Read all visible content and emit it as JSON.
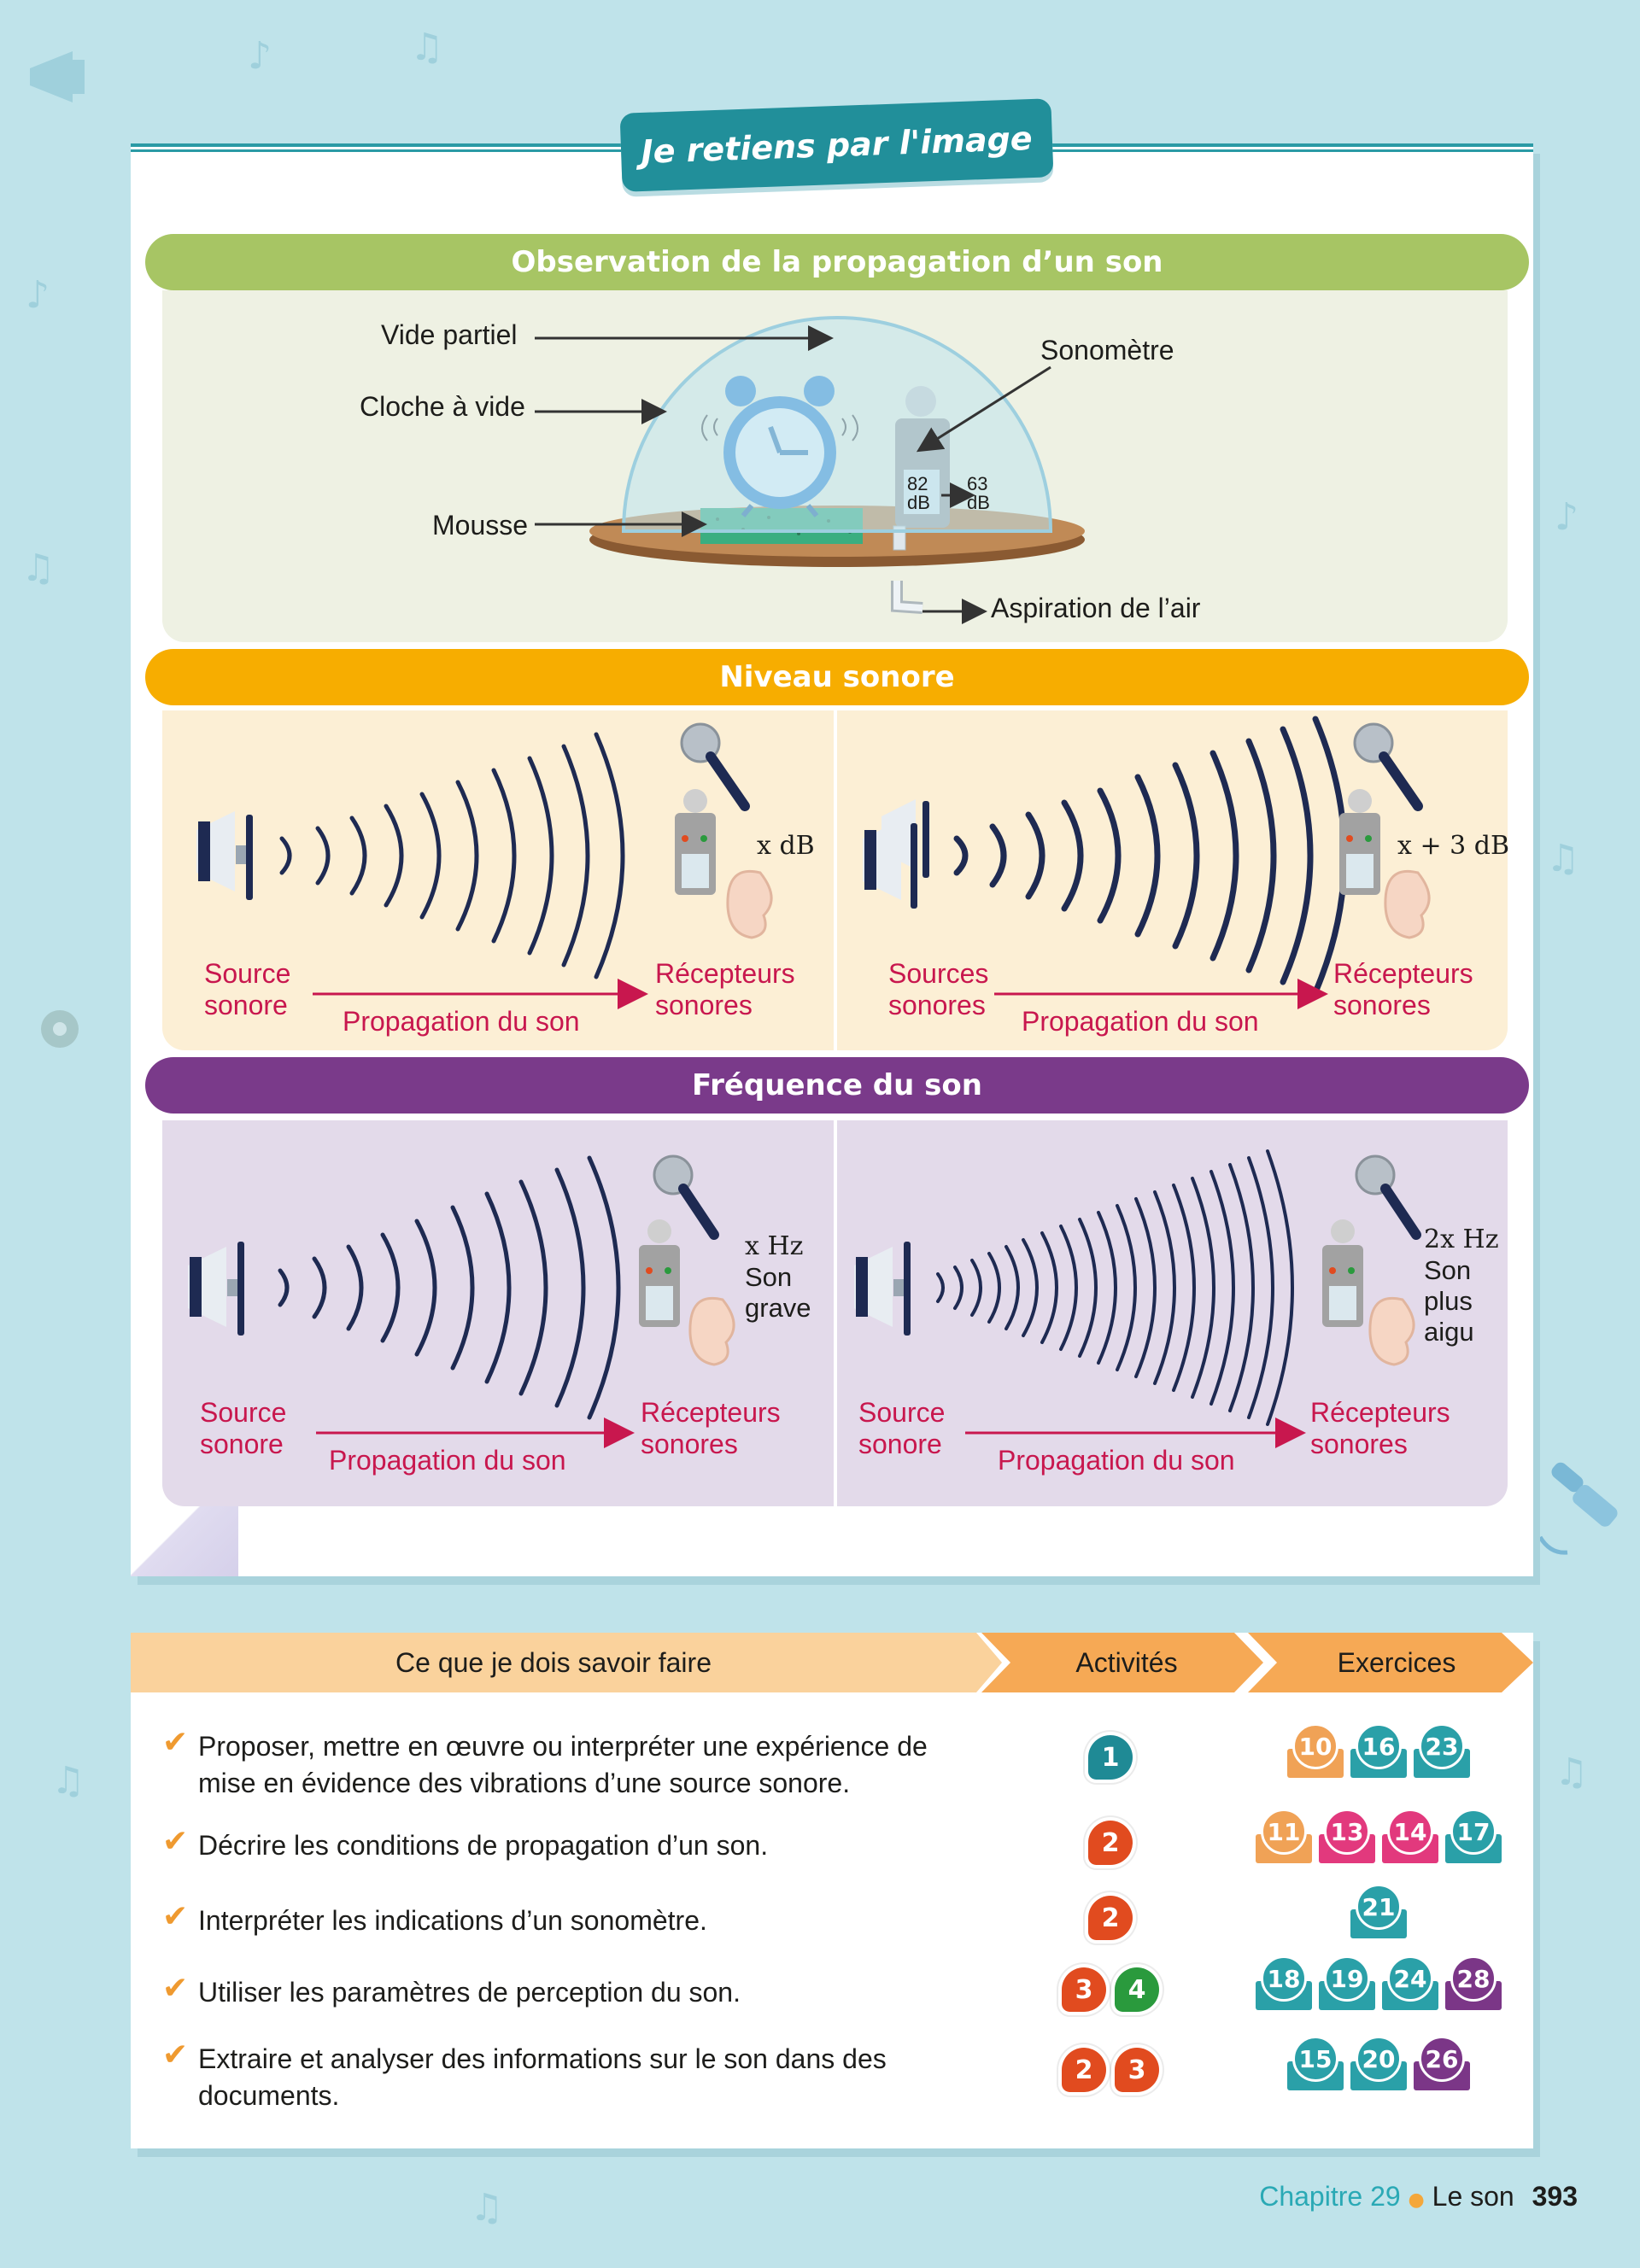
{
  "page": {
    "title_tab": "Je retiens par l'image"
  },
  "colors": {
    "teal": "#218f9a",
    "green_head": "#a7c564",
    "orange_head": "#f7ad00",
    "purple_head": "#7a3a8a",
    "receiver_red": "#c8174e",
    "ex_orange": "#f0a256",
    "ex_teal": "#2aa0a8",
    "ex_pink": "#e2397d",
    "ex_purple": "#7b3687",
    "act_teal": "#1f8a95",
    "act_red": "#e14b1f",
    "act_green": "#2a9a3d"
  },
  "sec1": {
    "heading": "Observation de la propagation d’un son",
    "labels": {
      "vide": "Vide partiel",
      "cloche": "Cloche à vide",
      "mousse": "Mousse",
      "sonometre": "Sonomètre",
      "aspiration": "Aspiration de l’air",
      "reading_1_value": "82",
      "reading_1_unit": "dB",
      "reading_2_value": "63",
      "reading_2_unit": "dB"
    }
  },
  "sec2": {
    "heading": "Niveau sonore",
    "left": {
      "source_1": "Source",
      "source_2": "sonore",
      "propagation": "Propagation du son",
      "recv_1": "Récepteurs",
      "recv_2": "sonores",
      "level": "x dB"
    },
    "right": {
      "source_1": "Sources",
      "source_2": "sonores",
      "propagation": "Propagation du son",
      "recv_1": "Récepteurs",
      "recv_2": "sonores",
      "level": "x + 3 dB"
    }
  },
  "sec3": {
    "heading": "Fréquence du son",
    "left": {
      "source_1": "Source",
      "source_2": "sonore",
      "propagation": "Propagation du son",
      "recv_1": "Récepteurs",
      "recv_2": "sonores",
      "freq": "x Hz",
      "desc_1": "Son",
      "desc_2": "grave"
    },
    "right": {
      "source_1": "Source",
      "source_2": "sonore",
      "propagation": "Propagation du son",
      "recv_1": "Récepteurs",
      "recv_2": "sonores",
      "freq": "2x Hz",
      "desc_1": "Son",
      "desc_2": "plus",
      "desc_3": "aigu"
    }
  },
  "skills": {
    "col_skill": "Ce que je dois savoir faire",
    "col_act": "Activités",
    "col_ex": "Exercices",
    "rows": [
      {
        "l1": "Proposer, mettre en œuvre ou interpréter une expérience de",
        "l2": "mise en évidence des vibrations d’une source sonore.",
        "acts": [
          "1"
        ],
        "exs": [
          "10",
          "16",
          "23"
        ]
      },
      {
        "l1": "Décrire les conditions de propagation d’un son.",
        "l2": "",
        "acts": [
          "2"
        ],
        "exs": [
          "11",
          "13",
          "14",
          "17"
        ]
      },
      {
        "l1": "Interpréter les indications d’un sonomètre.",
        "l2": "",
        "acts": [
          "2"
        ],
        "exs": [
          "21"
        ]
      },
      {
        "l1": "Utiliser les paramètres de perception du son.",
        "l2": "",
        "acts": [
          "3",
          "4"
        ],
        "exs": [
          "18",
          "19",
          "24",
          "28"
        ]
      },
      {
        "l1": "Extraire et analyser des informations sur le son dans des",
        "l2": "documents.",
        "acts": [
          "2",
          "3"
        ],
        "exs": [
          "15",
          "20",
          "26"
        ]
      }
    ]
  },
  "footer": {
    "chapter": "Chapitre 29",
    "bullet": "●",
    "topic": "Le son",
    "page": "393"
  }
}
